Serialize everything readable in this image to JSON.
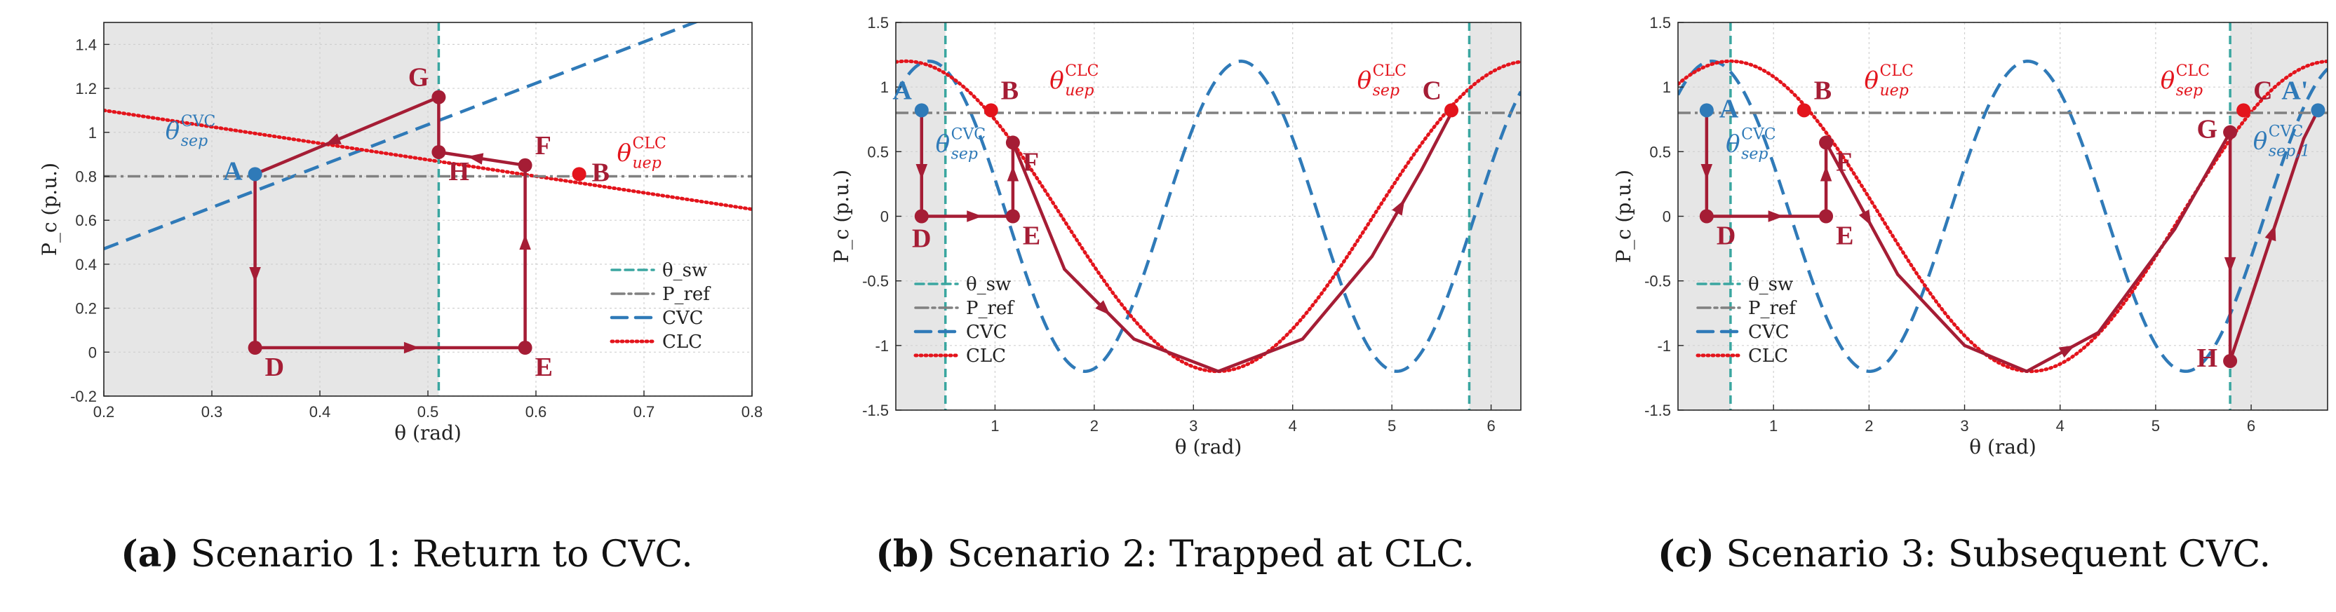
{
  "colors": {
    "trajectory": "#a51d35",
    "clc": "#e3141c",
    "cvc": "#2f7ab8",
    "theta_sw": "#3aa6a0",
    "p_ref": "#808080",
    "point_blue": "#2f7ab8",
    "point_red": "#e3141c",
    "shade": "#e6e6e6"
  },
  "chart_data": [
    {
      "type": "line",
      "title": "Scenario 1: Return to CVC.",
      "caption_tag": "(a)",
      "caption_text": " Scenario 1: Return to CVC.",
      "xlabel": "θ (rad)",
      "ylabel": "P_c (p.u.)",
      "xlim": [
        0.2,
        0.8
      ],
      "ylim": [
        -0.2,
        1.5
      ],
      "xticks": [
        0.2,
        0.3,
        0.4,
        0.5,
        0.6,
        0.7,
        0.8
      ],
      "xtick_labels": [
        "0.2",
        "0.3",
        "0.4",
        "0.5",
        "0.6",
        "0.7",
        "0.8"
      ],
      "yticks": [
        -0.2,
        0,
        0.2,
        0.4,
        0.6,
        0.8,
        1,
        1.2,
        1.4
      ],
      "ytick_labels": [
        "-0.2",
        "0",
        "0.2",
        "0.4",
        "0.6",
        "0.8",
        "1",
        "1.2",
        "1.4"
      ],
      "shaded_x": [
        [
          0.2,
          0.51
        ]
      ],
      "theta_sw": [
        0.51
      ],
      "p_ref": 0.8,
      "cvc": [
        [
          0.2,
          0.47
        ],
        [
          0.8,
          1.6
        ]
      ],
      "clc": [
        [
          0.2,
          1.1
        ],
        [
          0.8,
          0.65
        ]
      ],
      "legend": [
        "θ_sw",
        "P_ref",
        "CVC",
        "CLC"
      ],
      "legend_position": "lower-right",
      "trajectory": [
        [
          0.34,
          0.81
        ],
        [
          0.34,
          0.02
        ],
        [
          0.59,
          0.02
        ],
        [
          0.59,
          0.85
        ],
        [
          0.51,
          0.91
        ],
        [
          0.51,
          1.16
        ],
        [
          0.34,
          0.81
        ]
      ],
      "arrows": [
        1,
        2,
        3,
        4,
        6
      ],
      "points": [
        {
          "label": "A",
          "x": 0.34,
          "y": 0.81,
          "color": "blue",
          "pos": "left"
        },
        {
          "label": "D",
          "x": 0.34,
          "y": 0.02,
          "color": "dark",
          "pos": "below-right"
        },
        {
          "label": "E",
          "x": 0.59,
          "y": 0.02,
          "color": "dark",
          "pos": "below-right"
        },
        {
          "label": "F",
          "x": 0.59,
          "y": 0.85,
          "color": "dark",
          "pos": "above-right"
        },
        {
          "label": "H",
          "x": 0.51,
          "y": 0.91,
          "color": "dark",
          "pos": "below-right"
        },
        {
          "label": "G",
          "x": 0.51,
          "y": 1.16,
          "color": "dark",
          "pos": "above-left"
        },
        {
          "label": "B",
          "x": 0.64,
          "y": 0.81,
          "color": "red",
          "pos": "right"
        }
      ],
      "angles": [
        {
          "text": "θ",
          "sup": "CVC",
          "sub": "sep",
          "x": 0.257,
          "y": 0.97,
          "color": "blue"
        },
        {
          "text": "θ",
          "sup": "CLC",
          "sub": "uep",
          "x": 0.675,
          "y": 0.87,
          "color": "red"
        }
      ]
    },
    {
      "type": "line",
      "title": "Scenario 2: Trapped at CLC.",
      "caption_tag": "(b)",
      "caption_text": " Scenario 2: Trapped at CLC.",
      "xlabel": "θ (rad)",
      "ylabel": "P_c (p.u.)",
      "xlim": [
        0.0,
        6.3
      ],
      "ylim": [
        -1.5,
        1.5
      ],
      "xticks": [
        1,
        2,
        3,
        4,
        5,
        6
      ],
      "xtick_labels": [
        "1",
        "2",
        "3",
        "4",
        "5",
        "6"
      ],
      "yticks": [
        -1.5,
        -1,
        -0.5,
        0,
        0.5,
        1,
        1.5
      ],
      "ytick_labels": [
        "-1.5",
        "-1",
        "-0.5",
        "0",
        "0.5",
        "1",
        "1.5"
      ],
      "shaded_x": [
        [
          0.0,
          0.5
        ],
        [
          5.78,
          6.3
        ]
      ],
      "theta_sw": [
        0.5,
        5.78
      ],
      "p_ref": 0.8,
      "legend": [
        "θ_sw",
        "P_ref",
        "CVC",
        "CLC"
      ],
      "legend_position": "lower-left",
      "cvc_amp": 1.2,
      "cvc_freq": 2.0,
      "cvc_phase": 0.9,
      "clc_amp": 1.2,
      "clc_shift": 0.1,
      "trajectory": [
        [
          0.26,
          0.82
        ],
        [
          0.26,
          0.0
        ],
        [
          1.18,
          0.0
        ],
        [
          1.18,
          0.57
        ],
        [
          1.7,
          -0.41
        ],
        [
          2.4,
          -0.95
        ],
        [
          3.25,
          -1.2
        ],
        [
          4.1,
          -0.95
        ],
        [
          4.8,
          -0.31
        ],
        [
          5.3,
          0.36
        ],
        [
          5.6,
          0.8
        ]
      ],
      "arrows": [
        1,
        2,
        3,
        5,
        9
      ],
      "points": [
        {
          "label": "A",
          "x": 0.26,
          "y": 0.82,
          "color": "blue",
          "pos": "above-left"
        },
        {
          "label": "D",
          "x": 0.26,
          "y": 0.0,
          "color": "dark",
          "pos": "below"
        },
        {
          "label": "E",
          "x": 1.18,
          "y": 0.0,
          "color": "dark",
          "pos": "below-right"
        },
        {
          "label": "F",
          "x": 1.18,
          "y": 0.57,
          "color": "dark",
          "pos": "below-right"
        },
        {
          "label": "B",
          "x": 0.96,
          "y": 0.82,
          "color": "red",
          "pos": "above-right"
        },
        {
          "label": "C",
          "x": 5.6,
          "y": 0.82,
          "color": "red",
          "pos": "above-left"
        }
      ],
      "angles": [
        {
          "text": "θ",
          "sup": "CLC",
          "sub": "uep",
          "x": 1.55,
          "y": 0.99,
          "color": "red"
        },
        {
          "text": "θ",
          "sup": "CVC",
          "sub": "sep",
          "x": 0.4,
          "y": 0.5,
          "color": "blue"
        },
        {
          "text": "θ",
          "sup": "CLC",
          "sub": "sep",
          "x": 4.65,
          "y": 0.99,
          "color": "red"
        }
      ]
    },
    {
      "type": "line",
      "title": "Scenario 3: Subsequent CVC.",
      "caption_tag": "(c)",
      "caption_text": " Scenario 3: Subsequent CVC.",
      "xlabel": "θ (rad)",
      "ylabel": "P_c (p.u.)",
      "xlim": [
        0.0,
        6.8
      ],
      "ylim": [
        -1.5,
        1.5
      ],
      "xticks": [
        1,
        2,
        3,
        4,
        5,
        6
      ],
      "xtick_labels": [
        "1",
        "2",
        "3",
        "4",
        "5",
        "6"
      ],
      "yticks": [
        -1.5,
        -1,
        -0.5,
        0,
        0.5,
        1,
        1.5
      ],
      "ytick_labels": [
        "-1.5",
        "-1",
        "-0.5",
        "0",
        "0.5",
        "1",
        "1.5"
      ],
      "shaded_x": [
        [
          0.0,
          0.55
        ],
        [
          5.78,
          6.8
        ]
      ],
      "theta_sw": [
        0.55,
        5.78
      ],
      "p_ref": 0.8,
      "legend": [
        "θ_sw",
        "P_ref",
        "CVC",
        "CLC"
      ],
      "legend_position": "lower-left",
      "cvc_amp": 1.2,
      "cvc_freq": 1.9,
      "cvc_phase": 0.9,
      "clc_amp": 1.2,
      "clc_shift": 0.55,
      "trajectory": [
        [
          0.3,
          0.82
        ],
        [
          0.3,
          0.0
        ],
        [
          1.55,
          0.0
        ],
        [
          1.55,
          0.57
        ],
        [
          2.3,
          -0.45
        ],
        [
          3.0,
          -1.0
        ],
        [
          3.65,
          -1.2
        ],
        [
          4.4,
          -0.9
        ],
        [
          5.2,
          -0.1
        ],
        [
          5.78,
          0.65
        ],
        [
          5.78,
          -1.12
        ],
        [
          6.55,
          0.6
        ],
        [
          6.7,
          0.82
        ]
      ],
      "arrows": [
        1,
        2,
        3,
        4,
        7,
        10,
        11
      ],
      "points": [
        {
          "label": "A",
          "x": 0.3,
          "y": 0.82,
          "color": "blue",
          "pos": "right"
        },
        {
          "label": "D",
          "x": 0.3,
          "y": 0.0,
          "color": "dark",
          "pos": "below-right"
        },
        {
          "label": "E",
          "x": 1.55,
          "y": 0.0,
          "color": "dark",
          "pos": "below-right"
        },
        {
          "label": "F",
          "x": 1.55,
          "y": 0.57,
          "color": "dark",
          "pos": "below-right"
        },
        {
          "label": "B",
          "x": 1.32,
          "y": 0.82,
          "color": "red",
          "pos": "above-right"
        },
        {
          "label": "C",
          "x": 5.92,
          "y": 0.82,
          "color": "red",
          "pos": "above-right"
        },
        {
          "label": "G",
          "x": 5.78,
          "y": 0.65,
          "color": "dark",
          "pos": "left"
        },
        {
          "label": "H",
          "x": 5.78,
          "y": -1.12,
          "color": "dark",
          "pos": "left"
        },
        {
          "label": "A'",
          "x": 6.7,
          "y": 0.82,
          "color": "blue",
          "pos": "above-left"
        }
      ],
      "angles": [
        {
          "text": "θ",
          "sup": "CVC",
          "sub": "sep",
          "x": 0.5,
          "y": 0.5,
          "color": "blue"
        },
        {
          "text": "θ",
          "sup": "CLC",
          "sub": "uep",
          "x": 1.95,
          "y": 0.99,
          "color": "red"
        },
        {
          "text": "θ",
          "sup": "CLC",
          "sub": "sep",
          "x": 5.05,
          "y": 0.99,
          "color": "red"
        },
        {
          "text": "θ",
          "sup": "CVC",
          "sub": "sep,1",
          "x": 6.02,
          "y": 0.52,
          "color": "blue"
        }
      ]
    }
  ]
}
